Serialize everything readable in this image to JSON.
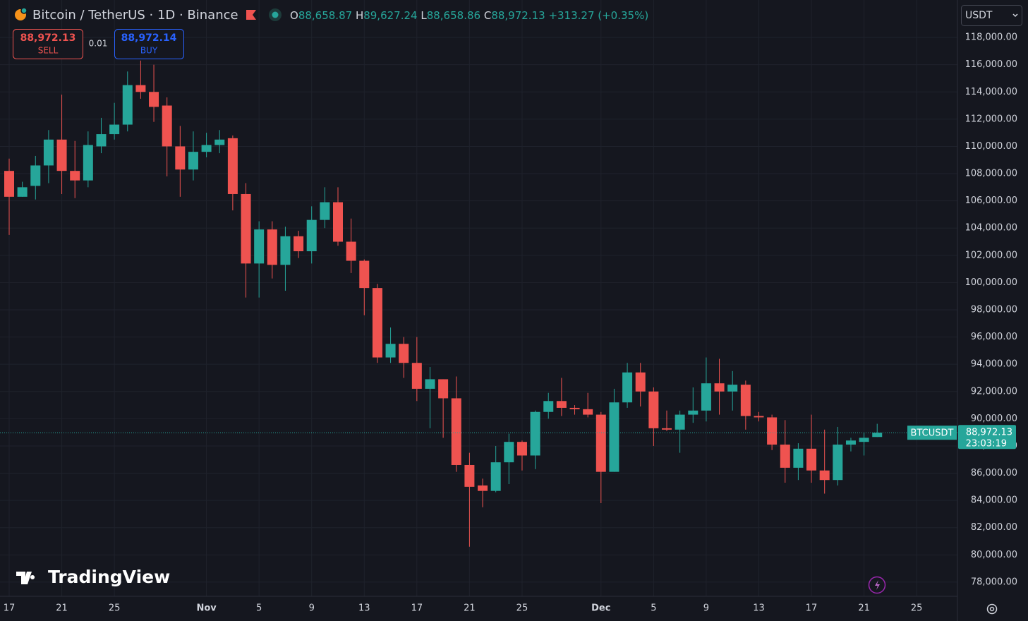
{
  "chart_data": {
    "type": "candlestick",
    "title": "Bitcoin / TetherUS · 1D · Binance",
    "header": {
      "o_key": "O",
      "o": "88,658.87",
      "h_key": "H",
      "h": "89,627.24",
      "l_key": "L",
      "l": "88,658.86",
      "c_key": "C",
      "c": "88,972.13",
      "change": "+313.27 (+0.35%)"
    },
    "trade": {
      "sell_price": "88,972.13",
      "sell": "SELL",
      "qty": "0.01",
      "buy_price": "88,972.14",
      "buy": "BUY"
    },
    "currency": "USDT",
    "logo": "TradingView",
    "categories": [
      "17",
      null,
      null,
      null,
      "21",
      null,
      null,
      null,
      "25",
      null,
      null,
      null,
      null,
      null,
      null,
      "Nov",
      null,
      null,
      null,
      "5",
      null,
      null,
      null,
      "9",
      null,
      null,
      null,
      "13",
      null,
      null,
      null,
      "17",
      null,
      null,
      null,
      "21",
      null,
      null,
      null,
      "25",
      null,
      null,
      null,
      null,
      null,
      "Dec",
      null,
      null,
      null,
      "5",
      null,
      null,
      null,
      "9",
      null,
      null,
      null,
      "13",
      null,
      null,
      null,
      "17",
      null,
      null,
      null,
      "21",
      null,
      null,
      null,
      "25",
      null,
      null
    ],
    "series": [
      {
        "name": "BTCUSDT",
        "up_color": "#26a69a",
        "down_color": "#ef5350",
        "open": [
          108200,
          106300,
          107100,
          108600,
          110500,
          108200,
          107500,
          110000,
          110900,
          111600,
          114500,
          114000,
          113000,
          110000,
          108300,
          109600,
          110100,
          110600,
          106500,
          101400,
          103900,
          101300,
          103400,
          102300,
          104600,
          105900,
          103000,
          101600,
          99600,
          94500,
          95500,
          94100,
          92200,
          92900,
          91500,
          86600,
          85100,
          84700,
          86800,
          88300,
          87300,
          90500,
          91300,
          90800,
          90700,
          90300,
          86100,
          91200,
          93400,
          92000,
          89300,
          89200,
          90300,
          90600,
          92600,
          92000,
          92500,
          90200,
          90100,
          88100,
          86400,
          87800,
          86200,
          85500,
          88100,
          88300,
          88658.87,
          null,
          null,
          null,
          null,
          null
        ],
        "high": [
          109100,
          107400,
          109300,
          111200,
          113800,
          110400,
          111100,
          112100,
          113200,
          115500,
          116300,
          116000,
          113600,
          111500,
          111100,
          111000,
          111200,
          110800,
          107300,
          104500,
          104500,
          104100,
          103800,
          105600,
          107000,
          107000,
          104700,
          101700,
          99900,
          96700,
          96000,
          96000,
          93800,
          92900,
          93100,
          87500,
          85600,
          88000,
          88900,
          88400,
          90600,
          91900,
          93000,
          91000,
          91900,
          90500,
          92200,
          94100,
          94100,
          92300,
          90600,
          90600,
          92300,
          94500,
          94400,
          93500,
          92800,
          90500,
          90300,
          89900,
          88200,
          90300,
          89200,
          89400,
          88600,
          89000,
          89627.24,
          null,
          null,
          null,
          null,
          null
        ],
        "low": [
          103500,
          106300,
          106100,
          107300,
          106500,
          106200,
          107000,
          109500,
          110500,
          111100,
          113500,
          111800,
          107800,
          106300,
          107500,
          109200,
          109500,
          105300,
          98900,
          98900,
          100300,
          99400,
          101800,
          101400,
          104000,
          102700,
          100700,
          97600,
          94100,
          94100,
          93000,
          91300,
          89300,
          88600,
          86100,
          80600,
          83500,
          84600,
          85200,
          86200,
          86300,
          90000,
          90200,
          90300,
          90100,
          83800,
          86100,
          90800,
          90900,
          88000,
          89100,
          87500,
          89700,
          89800,
          90300,
          90600,
          89200,
          89800,
          87700,
          85300,
          85500,
          85300,
          84500,
          85100,
          87600,
          87300,
          88658.86,
          null,
          null,
          null,
          null,
          null
        ],
        "close": [
          106300,
          107000,
          108600,
          110500,
          108200,
          107500,
          110100,
          110900,
          111600,
          114500,
          114000,
          112900,
          110000,
          108300,
          109600,
          110100,
          110500,
          106500,
          101400,
          103900,
          101300,
          103400,
          102300,
          104600,
          105900,
          103000,
          101600,
          99600,
          94500,
          95500,
          94100,
          92200,
          92900,
          91500,
          86600,
          85000,
          84700,
          86800,
          88300,
          87300,
          90500,
          91300,
          90800,
          90700,
          90300,
          86100,
          91200,
          93400,
          92000,
          89300,
          89200,
          90300,
          90600,
          92600,
          92000,
          92500,
          90200,
          90100,
          88100,
          86400,
          87800,
          86200,
          85500,
          88100,
          88400,
          88600,
          88972.13,
          null,
          null,
          null,
          null,
          null
        ]
      }
    ],
    "price_line": {
      "value": 88972.13,
      "value_label": "88,972.13",
      "symbol": "BTCUSDT",
      "countdown": "23:03:19"
    },
    "ylim": [
      76960,
      120750
    ],
    "yticks": [
      {
        "value": 78000,
        "label": "78,000.00"
      },
      {
        "value": 80000,
        "label": "80,000.00"
      },
      {
        "value": 82000,
        "label": "82,000.00"
      },
      {
        "value": 84000,
        "label": "84,000.00"
      },
      {
        "value": 86000,
        "label": "86,000.00"
      },
      {
        "value": 88000,
        "label": "88,000.00"
      },
      {
        "value": 90000,
        "label": "90,000.00"
      },
      {
        "value": 92000,
        "label": "92,000.00"
      },
      {
        "value": 94000,
        "label": "94,000.00"
      },
      {
        "value": 96000,
        "label": "96,000.00"
      },
      {
        "value": 98000,
        "label": "98,000.00"
      },
      {
        "value": 100000,
        "label": "100,000.00"
      },
      {
        "value": 102000,
        "label": "102,000.00"
      },
      {
        "value": 104000,
        "label": "104,000.00"
      },
      {
        "value": 106000,
        "label": "106,000.00"
      },
      {
        "value": 108000,
        "label": "108,000.00"
      },
      {
        "value": 110000,
        "label": "110,000.00"
      },
      {
        "value": 112000,
        "label": "112,000.00"
      },
      {
        "value": 114000,
        "label": "114,000.00"
      },
      {
        "value": 116000,
        "label": "116,000.00"
      },
      {
        "value": 118000,
        "label": "118,000.00"
      }
    ],
    "grid": true
  }
}
